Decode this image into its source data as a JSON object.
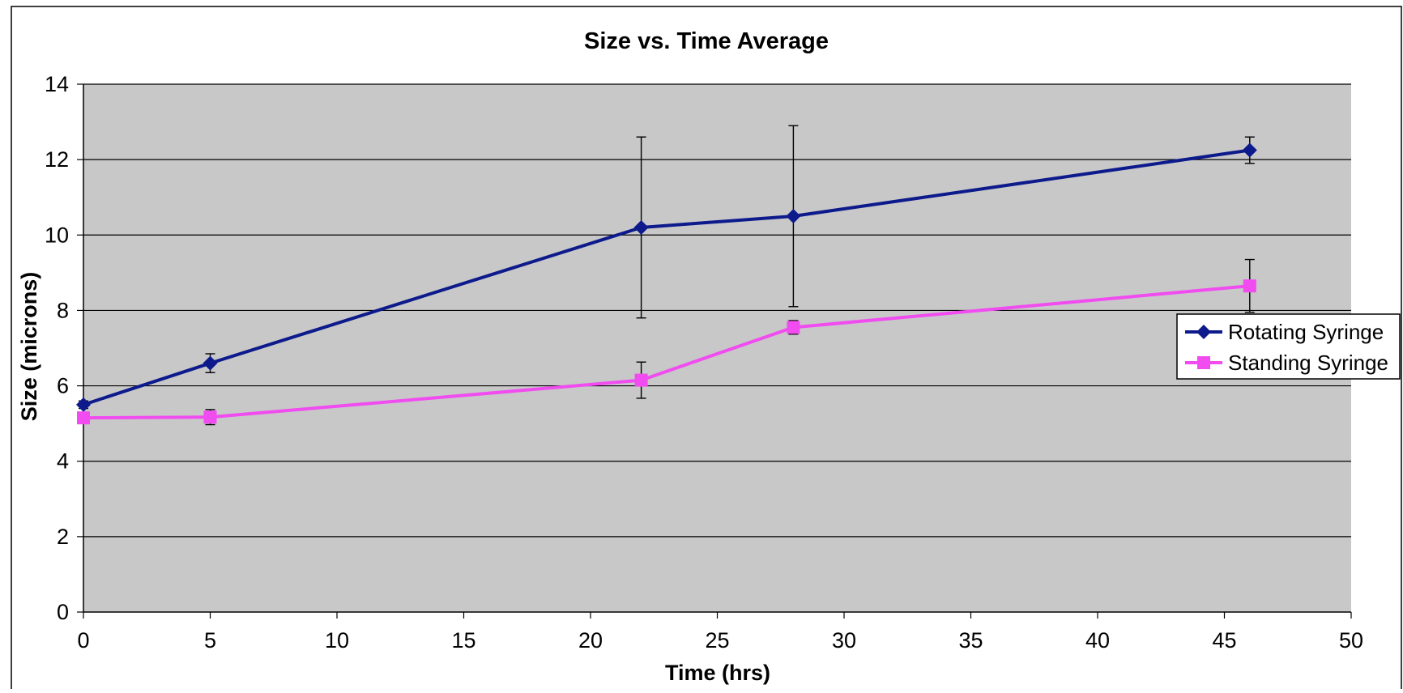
{
  "chart_data": {
    "type": "line",
    "title": "Size vs. Time Average",
    "xlabel": "Time (hrs)",
    "ylabel": "Size (microns)",
    "xlim": [
      0,
      50
    ],
    "ylim": [
      0,
      14
    ],
    "x_ticks": [
      "0",
      "5",
      "10",
      "15",
      "20",
      "25",
      "30",
      "35",
      "40",
      "45",
      "50"
    ],
    "y_ticks": [
      "0",
      "2",
      "4",
      "6",
      "8",
      "10",
      "12",
      "14"
    ],
    "grid": "horizontal",
    "legend_position": "right",
    "series": [
      {
        "name": "Rotating Syringe",
        "color": "#0d1a8c",
        "marker": "diamond",
        "x": [
          0,
          5,
          22,
          28,
          46
        ],
        "y": [
          5.5,
          6.6,
          10.2,
          10.5,
          12.25
        ],
        "error": [
          0.1,
          0.25,
          2.4,
          2.4,
          0.35
        ]
      },
      {
        "name": "Standing Syringe",
        "color": "#f04cf0",
        "marker": "square",
        "x": [
          0,
          5,
          22,
          28,
          46
        ],
        "y": [
          5.15,
          5.17,
          6.15,
          7.55,
          8.65
        ],
        "error": [
          0.05,
          0.2,
          0.48,
          0.18,
          0.7
        ]
      }
    ],
    "plot_background": "#c8c8c8",
    "gridline_color": "#000000"
  }
}
